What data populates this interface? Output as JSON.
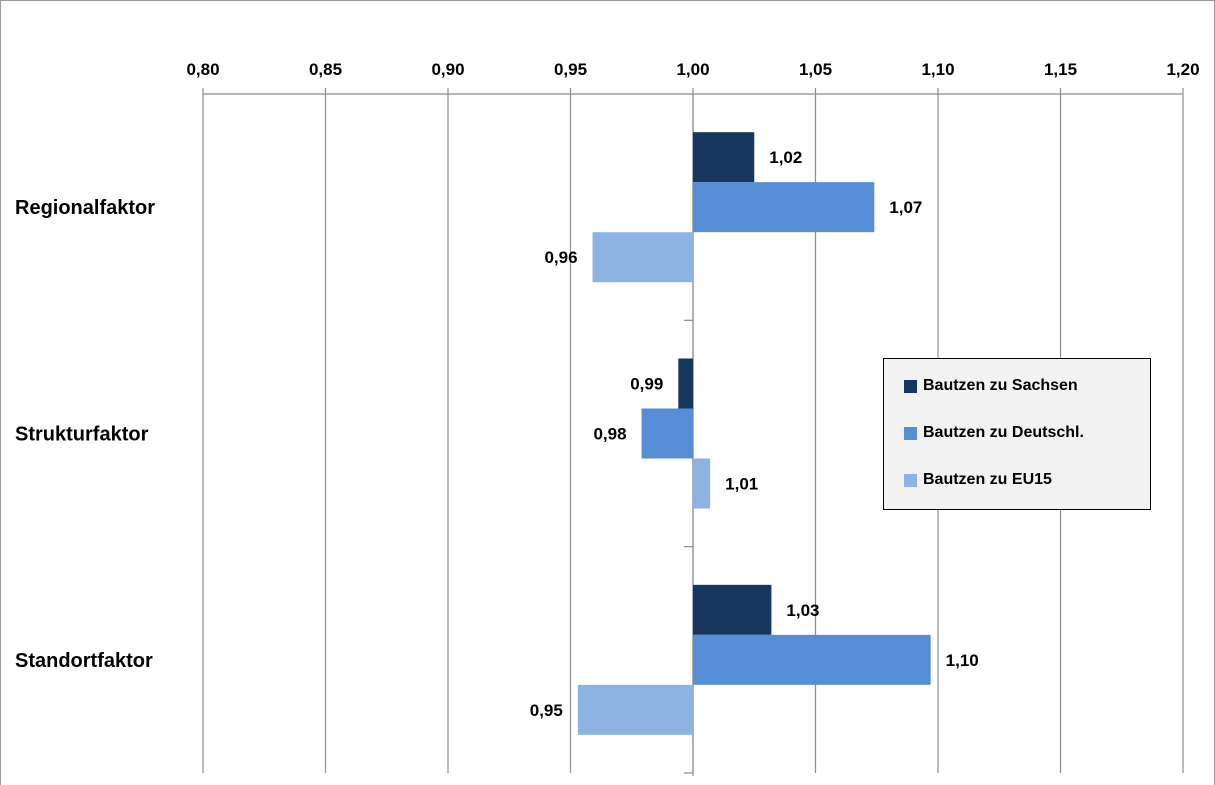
{
  "chart_data": {
    "type": "bar",
    "orientation": "horizontal",
    "categories": [
      "Regionalfaktor",
      "Strukturfaktor",
      "Standortfaktor"
    ],
    "series": [
      {
        "name": "Bautzen zu Sachsen",
        "color": "#17375e",
        "values": [
          1.025,
          0.994,
          1.032
        ],
        "labels": [
          "1,02",
          "0,99",
          "1,03"
        ]
      },
      {
        "name": "Bautzen zu Deutschl.",
        "color": "#558ed5",
        "values": [
          1.074,
          0.979,
          1.097
        ],
        "labels": [
          "1,07",
          "0,98",
          "1,10"
        ]
      },
      {
        "name": "Bautzen zu EU15",
        "color": "#8db3e2",
        "values": [
          0.959,
          1.007,
          0.953
        ],
        "labels": [
          "0,96",
          "1,01",
          "0,95"
        ]
      }
    ],
    "baseline": 1.0,
    "xlim": [
      0.8,
      1.2
    ],
    "xticks": [
      0.8,
      0.85,
      0.9,
      0.95,
      1.0,
      1.05,
      1.1,
      1.15,
      1.2
    ],
    "xtick_labels": [
      "0,80",
      "0,85",
      "0,90",
      "0,95",
      "1,00",
      "1,05",
      "1,10",
      "1,15",
      "1,20"
    ],
    "x_axis_position": "top",
    "grid": true,
    "legend_position": "right",
    "title": "",
    "xlabel": "",
    "ylabel": ""
  }
}
